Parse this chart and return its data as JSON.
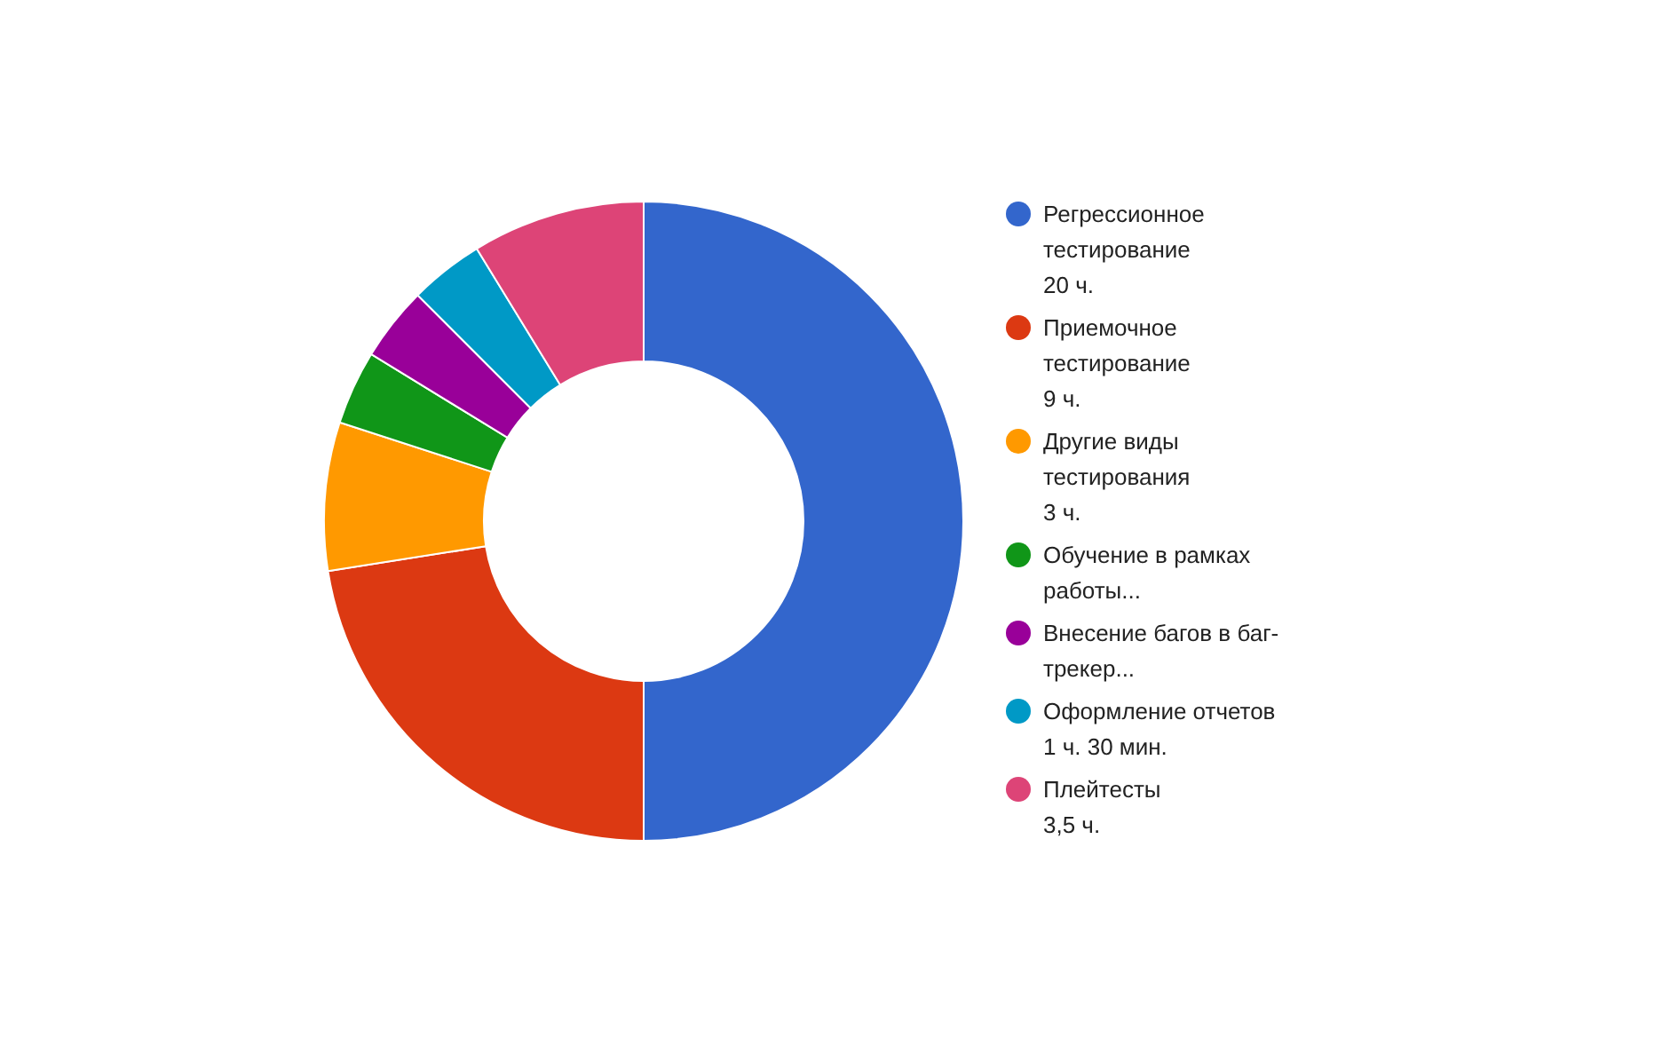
{
  "chart_data": {
    "type": "donut",
    "categories": [
      "Регрессионное\nтестирование\n20 ч.",
      "Приемочное\nтестирование\n9 ч.",
      "Другие виды\nтестирования\n3 ч.",
      "Обучение в рамках\nработы...",
      "Внесение багов в баг-\nтрекер...",
      "Оформление отчетов\n1 ч. 30 мин.",
      "Плейтесты\n3,5 ч."
    ],
    "values": [
      20,
      9,
      3,
      1.5,
      1.5,
      1.5,
      3.5
    ],
    "colors": [
      "#3366cc",
      "#dc3912",
      "#ff9900",
      "#109618",
      "#990099",
      "#0099c6",
      "#dd4477"
    ],
    "legend": "right"
  }
}
